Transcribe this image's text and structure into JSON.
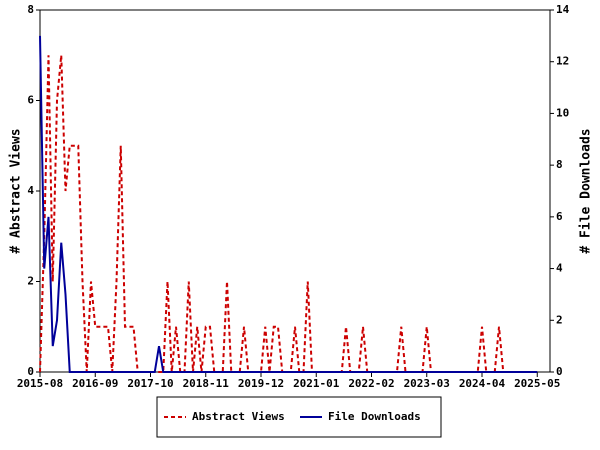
{
  "chart_data": {
    "type": "line",
    "ylabel": "# Abstract Views",
    "y2label": "# File Downloads",
    "x": [
      "2015-08",
      "2015-09",
      "2015-10",
      "2015-11",
      "2015-12",
      "2016-01",
      "2016-02",
      "2016-03",
      "2016-04",
      "2016-05",
      "2016-06",
      "2016-07",
      "2016-08",
      "2016-09",
      "2016-10",
      "2016-11",
      "2016-12",
      "2017-01",
      "2017-02",
      "2017-03",
      "2017-04",
      "2017-05",
      "2017-06",
      "2017-07",
      "2017-08",
      "2017-09",
      "2017-10",
      "2017-11",
      "2017-12",
      "2018-01",
      "2018-02",
      "2018-03",
      "2018-04",
      "2018-05",
      "2018-06",
      "2018-07",
      "2018-08",
      "2018-09",
      "2018-10",
      "2018-11",
      "2018-12",
      "2019-01",
      "2019-02",
      "2019-03",
      "2019-04",
      "2019-05",
      "2019-06",
      "2019-07",
      "2019-08",
      "2019-09",
      "2019-10",
      "2019-11",
      "2019-12",
      "2020-01",
      "2020-02",
      "2020-03",
      "2020-04",
      "2020-05",
      "2020-06",
      "2020-07",
      "2020-08",
      "2020-09",
      "2020-10",
      "2020-11",
      "2020-12",
      "2021-01",
      "2021-02",
      "2021-03",
      "2021-04",
      "2021-05",
      "2021-06",
      "2021-07",
      "2021-08",
      "2021-09",
      "2021-10",
      "2021-11",
      "2021-12",
      "2022-01",
      "2022-02",
      "2022-03",
      "2022-04",
      "2022-05",
      "2022-06",
      "2022-07",
      "2022-08",
      "2022-09",
      "2022-10",
      "2022-11",
      "2022-12",
      "2023-01",
      "2023-02",
      "2023-03",
      "2023-04",
      "2023-05",
      "2023-06",
      "2023-07",
      "2023-08",
      "2023-09",
      "2023-10",
      "2023-11",
      "2023-12",
      "2024-01",
      "2024-02",
      "2024-03",
      "2024-04",
      "2024-05",
      "2024-06",
      "2024-07",
      "2024-08",
      "2024-09",
      "2024-10",
      "2024-11",
      "2024-12",
      "2025-01",
      "2025-02",
      "2025-03",
      "2025-04",
      "2025-05"
    ],
    "series": [
      {
        "name": "Abstract Views",
        "color": "#cc0000",
        "dash": true,
        "axis": "y",
        "values": [
          0,
          3,
          7,
          2,
          6,
          7,
          4,
          5,
          5,
          5,
          2,
          0,
          2,
          1,
          1,
          1,
          1,
          0,
          2,
          5,
          1,
          1,
          1,
          0,
          0,
          0,
          0,
          0,
          0,
          0,
          2,
          0,
          1,
          0,
          0,
          2,
          0,
          1,
          0,
          1,
          1,
          0,
          0,
          0,
          2,
          0,
          0,
          0,
          1,
          0,
          0,
          0,
          0,
          1,
          0,
          1,
          1,
          0,
          0,
          0,
          1,
          0,
          0,
          2,
          0,
          0,
          0,
          0,
          0,
          0,
          0,
          0,
          1,
          0,
          0,
          0,
          1,
          0,
          0,
          0,
          0,
          0,
          0,
          0,
          0,
          1,
          0,
          0,
          0,
          0,
          0,
          1,
          0,
          0,
          0,
          0,
          0,
          0,
          0,
          0,
          0,
          0,
          0,
          0,
          1,
          0,
          0,
          0,
          1,
          0,
          0,
          0,
          0,
          0,
          0,
          0,
          0,
          0
        ]
      },
      {
        "name": "File Downloads",
        "color": "#000099",
        "dash": false,
        "axis": "y2",
        "values": [
          13,
          4,
          6,
          1,
          2,
          5,
          3,
          0,
          0,
          0,
          0,
          0,
          0,
          0,
          0,
          0,
          0,
          0,
          0,
          0,
          0,
          0,
          0,
          0,
          0,
          0,
          0,
          0,
          1,
          0,
          0,
          0,
          0,
          0,
          0,
          0,
          0,
          0,
          0,
          0,
          0,
          0,
          0,
          0,
          0,
          0,
          0,
          0,
          0,
          0,
          0,
          0,
          0,
          0,
          0,
          0,
          0,
          0,
          0,
          0,
          0,
          0,
          0,
          0,
          0,
          0,
          0,
          0,
          0,
          0,
          0,
          0,
          0,
          0,
          0,
          0,
          0,
          0,
          0,
          0,
          0,
          0,
          0,
          0,
          0,
          0,
          0,
          0,
          0,
          0,
          0,
          0,
          0,
          0,
          0,
          0,
          0,
          0,
          0,
          0,
          0,
          0,
          0,
          0,
          0,
          0,
          0,
          0,
          0,
          0,
          0,
          0,
          0,
          0,
          0,
          0,
          0,
          0
        ]
      }
    ],
    "xlim": [
      "2015-08",
      "2025-08"
    ],
    "xticks": [
      "2015-08",
      "2016-09",
      "2017-10",
      "2018-11",
      "2019-12",
      "2021-01",
      "2022-02",
      "2023-03",
      "2024-04",
      "2025-05"
    ],
    "ylim": [
      0,
      8
    ],
    "yticks": [
      0,
      2,
      4,
      6,
      8
    ],
    "y2lim": [
      0,
      14
    ],
    "y2ticks": [
      0,
      2,
      4,
      6,
      8,
      10,
      12,
      14
    ],
    "legend": "bottom"
  }
}
